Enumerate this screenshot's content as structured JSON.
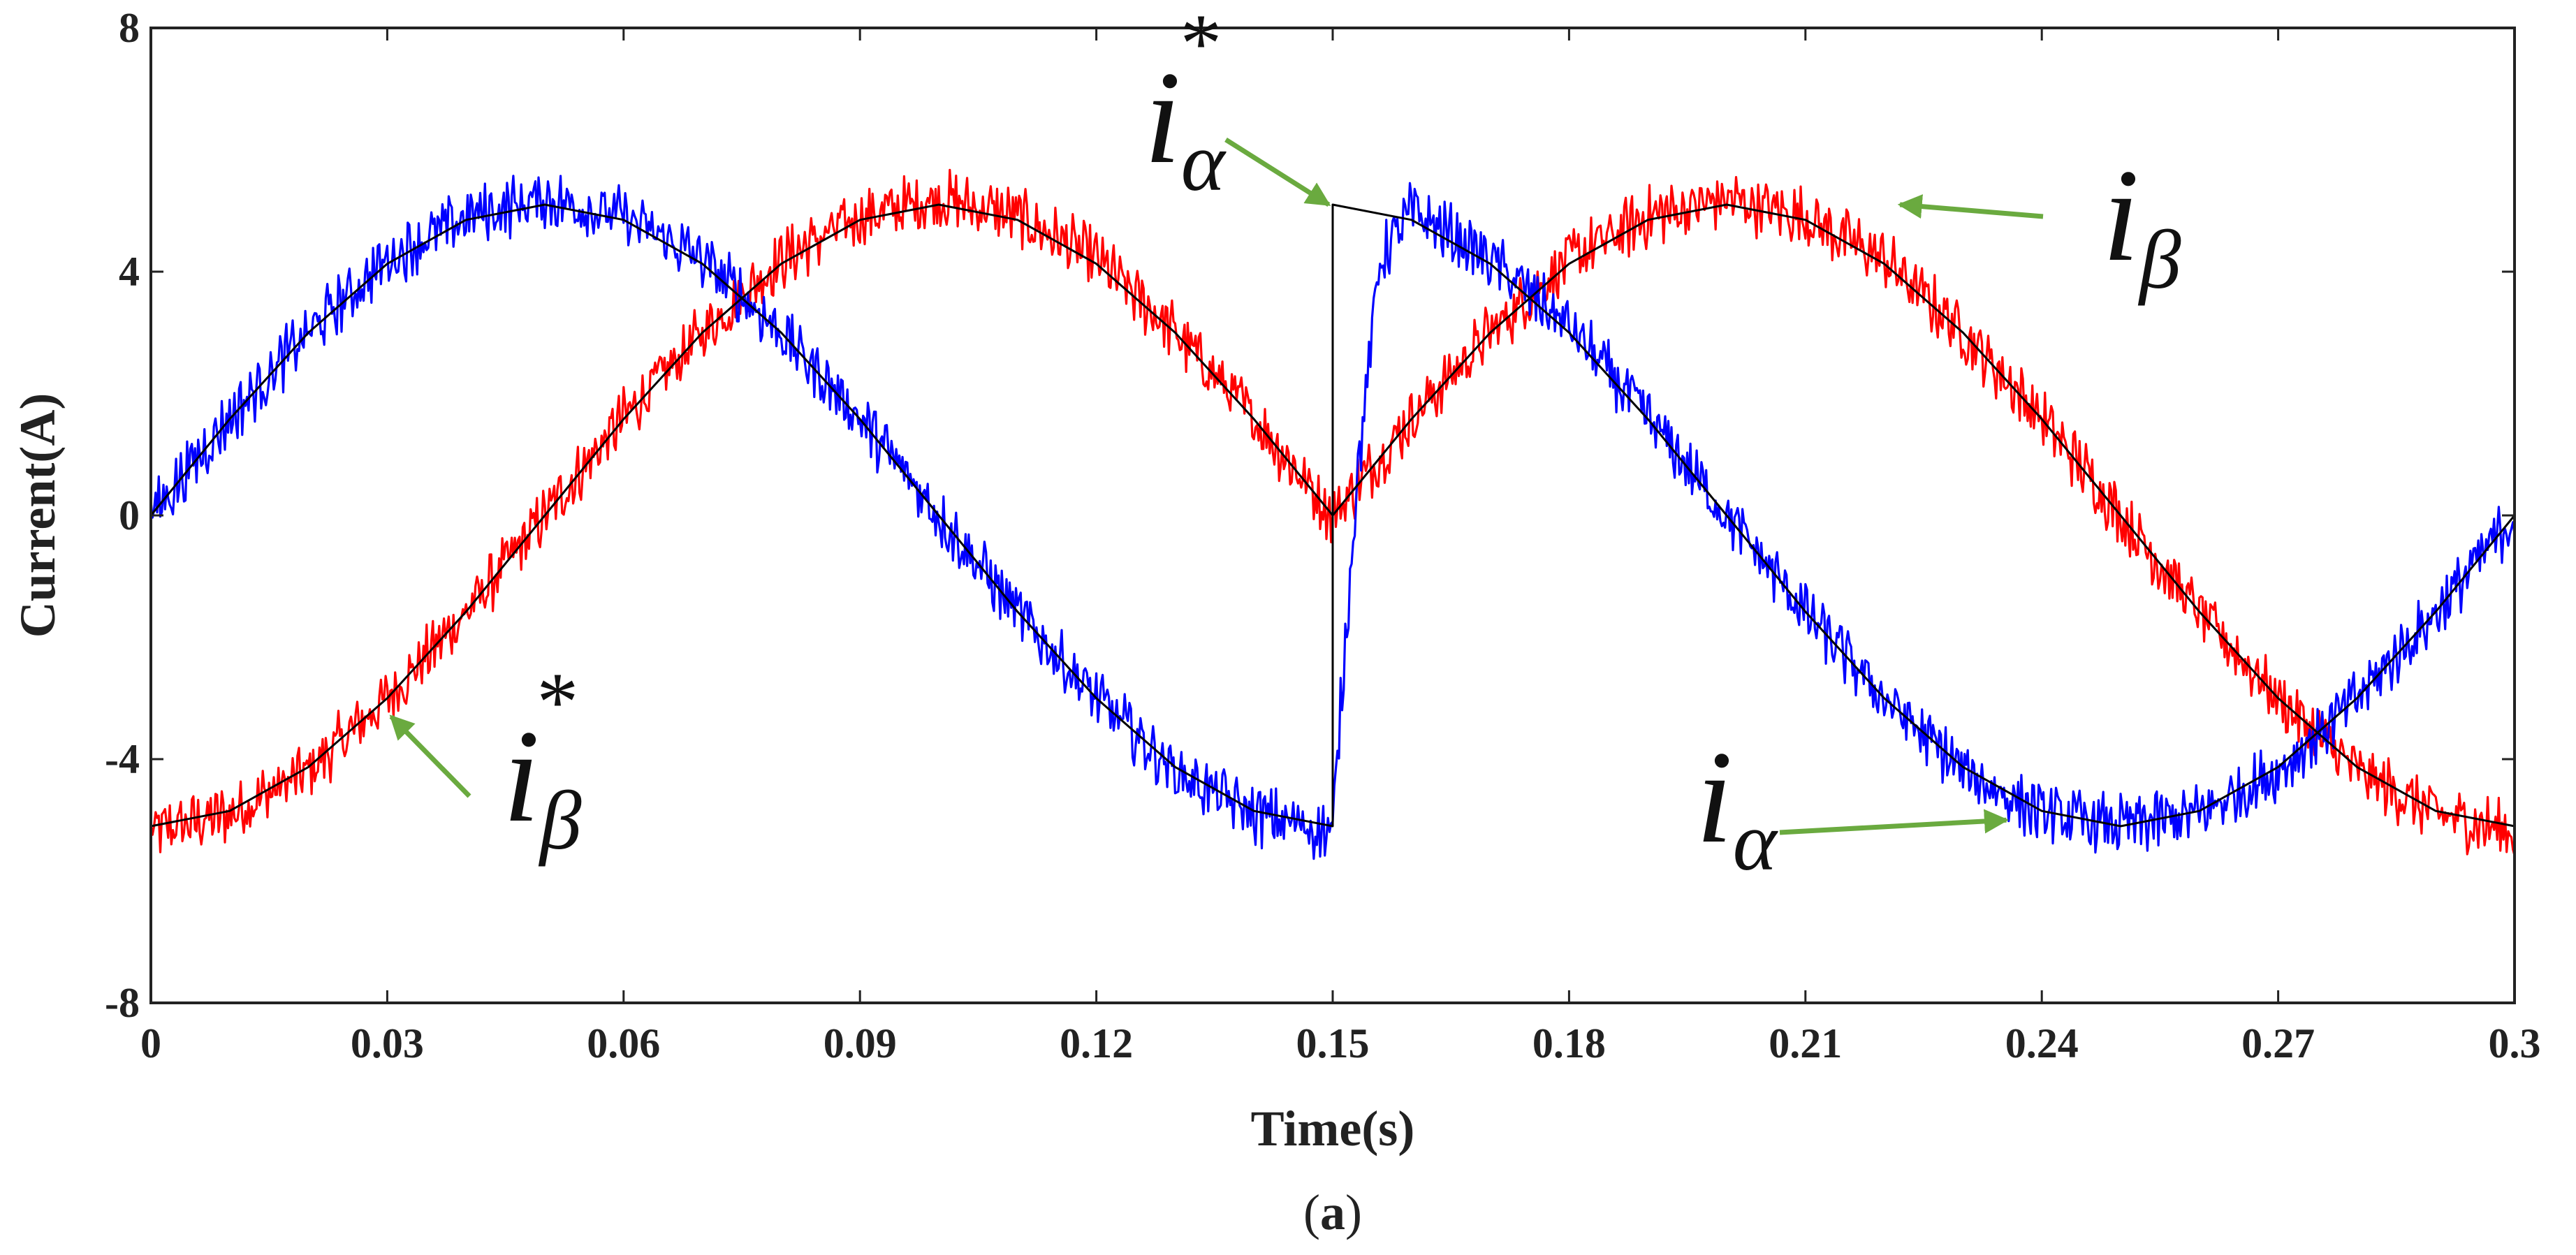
{
  "chart_data": {
    "type": "line",
    "title": "",
    "xlabel": "Time(s)",
    "ylabel": "Current(A)",
    "caption": {
      "open": "(",
      "letter": "a",
      "close": ")"
    },
    "xlim": [
      0,
      0.3
    ],
    "ylim": [
      -8,
      8
    ],
    "xticks": [
      0,
      0.03,
      0.06,
      0.09,
      0.12,
      0.15,
      0.18,
      0.21,
      0.24,
      0.27,
      0.3
    ],
    "xtick_labels": [
      "0",
      "0.03",
      "0.06",
      "0.09",
      "0.12",
      "0.15",
      "0.18",
      "0.21",
      "0.24",
      "0.27",
      "0.3"
    ],
    "yticks": [
      -8,
      -4,
      0,
      4,
      8
    ],
    "ytick_labels": [
      "-8",
      "-4",
      "0",
      "4",
      "8"
    ],
    "grid": false,
    "colors": {
      "ia": "#0000ff",
      "ib": "#ff0000",
      "ref": "#000000",
      "arrow": "#6aaa3f",
      "axis": "#222222"
    },
    "series": [
      {
        "name": "i_alpha_ref",
        "color": "#000000",
        "x": [
          0,
          0.01,
          0.02,
          0.03,
          0.04,
          0.05,
          0.06,
          0.07,
          0.08,
          0.09,
          0.1,
          0.11,
          0.12,
          0.13,
          0.14,
          0.15,
          0.15,
          0.16,
          0.17,
          0.18,
          0.19,
          0.2,
          0.21,
          0.22,
          0.23,
          0.24,
          0.25,
          0.26,
          0.27,
          0.28,
          0.29,
          0.3
        ],
        "y": [
          0,
          1.58,
          3.0,
          4.13,
          4.85,
          5.1,
          4.85,
          4.13,
          3.0,
          1.58,
          0,
          -1.58,
          -3.0,
          -4.13,
          -4.85,
          -5.1,
          5.1,
          4.85,
          4.13,
          3.0,
          1.58,
          0,
          -1.58,
          -3.0,
          -4.13,
          -4.85,
          -5.1,
          -4.85,
          -4.13,
          -3.0,
          -1.58,
          0
        ]
      },
      {
        "name": "i_beta_ref",
        "color": "#000000",
        "x": [
          0,
          0.01,
          0.02,
          0.03,
          0.04,
          0.05,
          0.06,
          0.07,
          0.08,
          0.09,
          0.1,
          0.11,
          0.12,
          0.13,
          0.14,
          0.15,
          0.16,
          0.17,
          0.18,
          0.19,
          0.2,
          0.21,
          0.22,
          0.23,
          0.24,
          0.25,
          0.26,
          0.27,
          0.28,
          0.29,
          0.3
        ],
        "y": [
          -5.1,
          -4.85,
          -4.13,
          -3.0,
          -1.58,
          0,
          1.58,
          3.0,
          4.13,
          4.85,
          5.1,
          4.85,
          4.13,
          3.0,
          1.58,
          0,
          1.58,
          3.0,
          4.13,
          4.85,
          5.1,
          4.85,
          4.13,
          3.0,
          1.58,
          0,
          -1.58,
          -3.0,
          -4.13,
          -4.85,
          -5.1
        ]
      },
      {
        "name": "i_alpha",
        "color": "#0000ff",
        "x": [
          0,
          0.005,
          0.01,
          0.02,
          0.03,
          0.04,
          0.05,
          0.06,
          0.07,
          0.08,
          0.09,
          0.1,
          0.11,
          0.12,
          0.13,
          0.14,
          0.15,
          0.151,
          0.153,
          0.156,
          0.16,
          0.17,
          0.18,
          0.19,
          0.2,
          0.21,
          0.22,
          0.23,
          0.24,
          0.25,
          0.26,
          0.27,
          0.28,
          0.29,
          0.3
        ],
        "y": [
          0,
          0.8,
          1.6,
          3.0,
          4.2,
          4.9,
          5.2,
          4.9,
          4.2,
          3.0,
          1.6,
          0,
          -1.6,
          -3.0,
          -4.2,
          -4.9,
          -5.2,
          -3.2,
          0.5,
          4.2,
          5.0,
          4.2,
          3.1,
          1.6,
          0,
          -1.6,
          -3.0,
          -4.2,
          -4.9,
          -5.1,
          -4.9,
          -4.2,
          -3.0,
          -1.6,
          0
        ]
      },
      {
        "name": "i_beta",
        "color": "#ff0000",
        "x": [
          0,
          0.01,
          0.02,
          0.03,
          0.04,
          0.05,
          0.06,
          0.07,
          0.08,
          0.09,
          0.1,
          0.11,
          0.12,
          0.13,
          0.14,
          0.15,
          0.16,
          0.17,
          0.18,
          0.19,
          0.2,
          0.21,
          0.22,
          0.23,
          0.24,
          0.25,
          0.26,
          0.27,
          0.28,
          0.29,
          0.3
        ],
        "y": [
          -5.2,
          -4.9,
          -4.2,
          -3.0,
          -1.6,
          0,
          1.6,
          3.0,
          4.2,
          4.9,
          5.2,
          4.9,
          4.2,
          3.0,
          1.6,
          0,
          1.6,
          3.0,
          4.2,
          4.9,
          5.2,
          4.9,
          4.2,
          3.0,
          1.6,
          0,
          -1.6,
          -3.0,
          -4.2,
          -4.9,
          -5.2
        ]
      }
    ],
    "annotations": [
      {
        "id": "ia-ref",
        "letter": "i",
        "sub": "α",
        "sup": "*",
        "arrow_to": [
          0.1495,
          5.1
        ]
      },
      {
        "id": "ib",
        "letter": "i",
        "sub": "β",
        "sup": "",
        "arrow_to": [
          0.222,
          5.1
        ]
      },
      {
        "id": "ib-ref",
        "letter": "i",
        "sub": "β",
        "sup": "*",
        "arrow_to": [
          0.0305,
          -3.3
        ]
      },
      {
        "id": "ia",
        "letter": "i",
        "sub": "α",
        "sup": "",
        "arrow_to": [
          0.2355,
          -5.0
        ]
      }
    ]
  }
}
